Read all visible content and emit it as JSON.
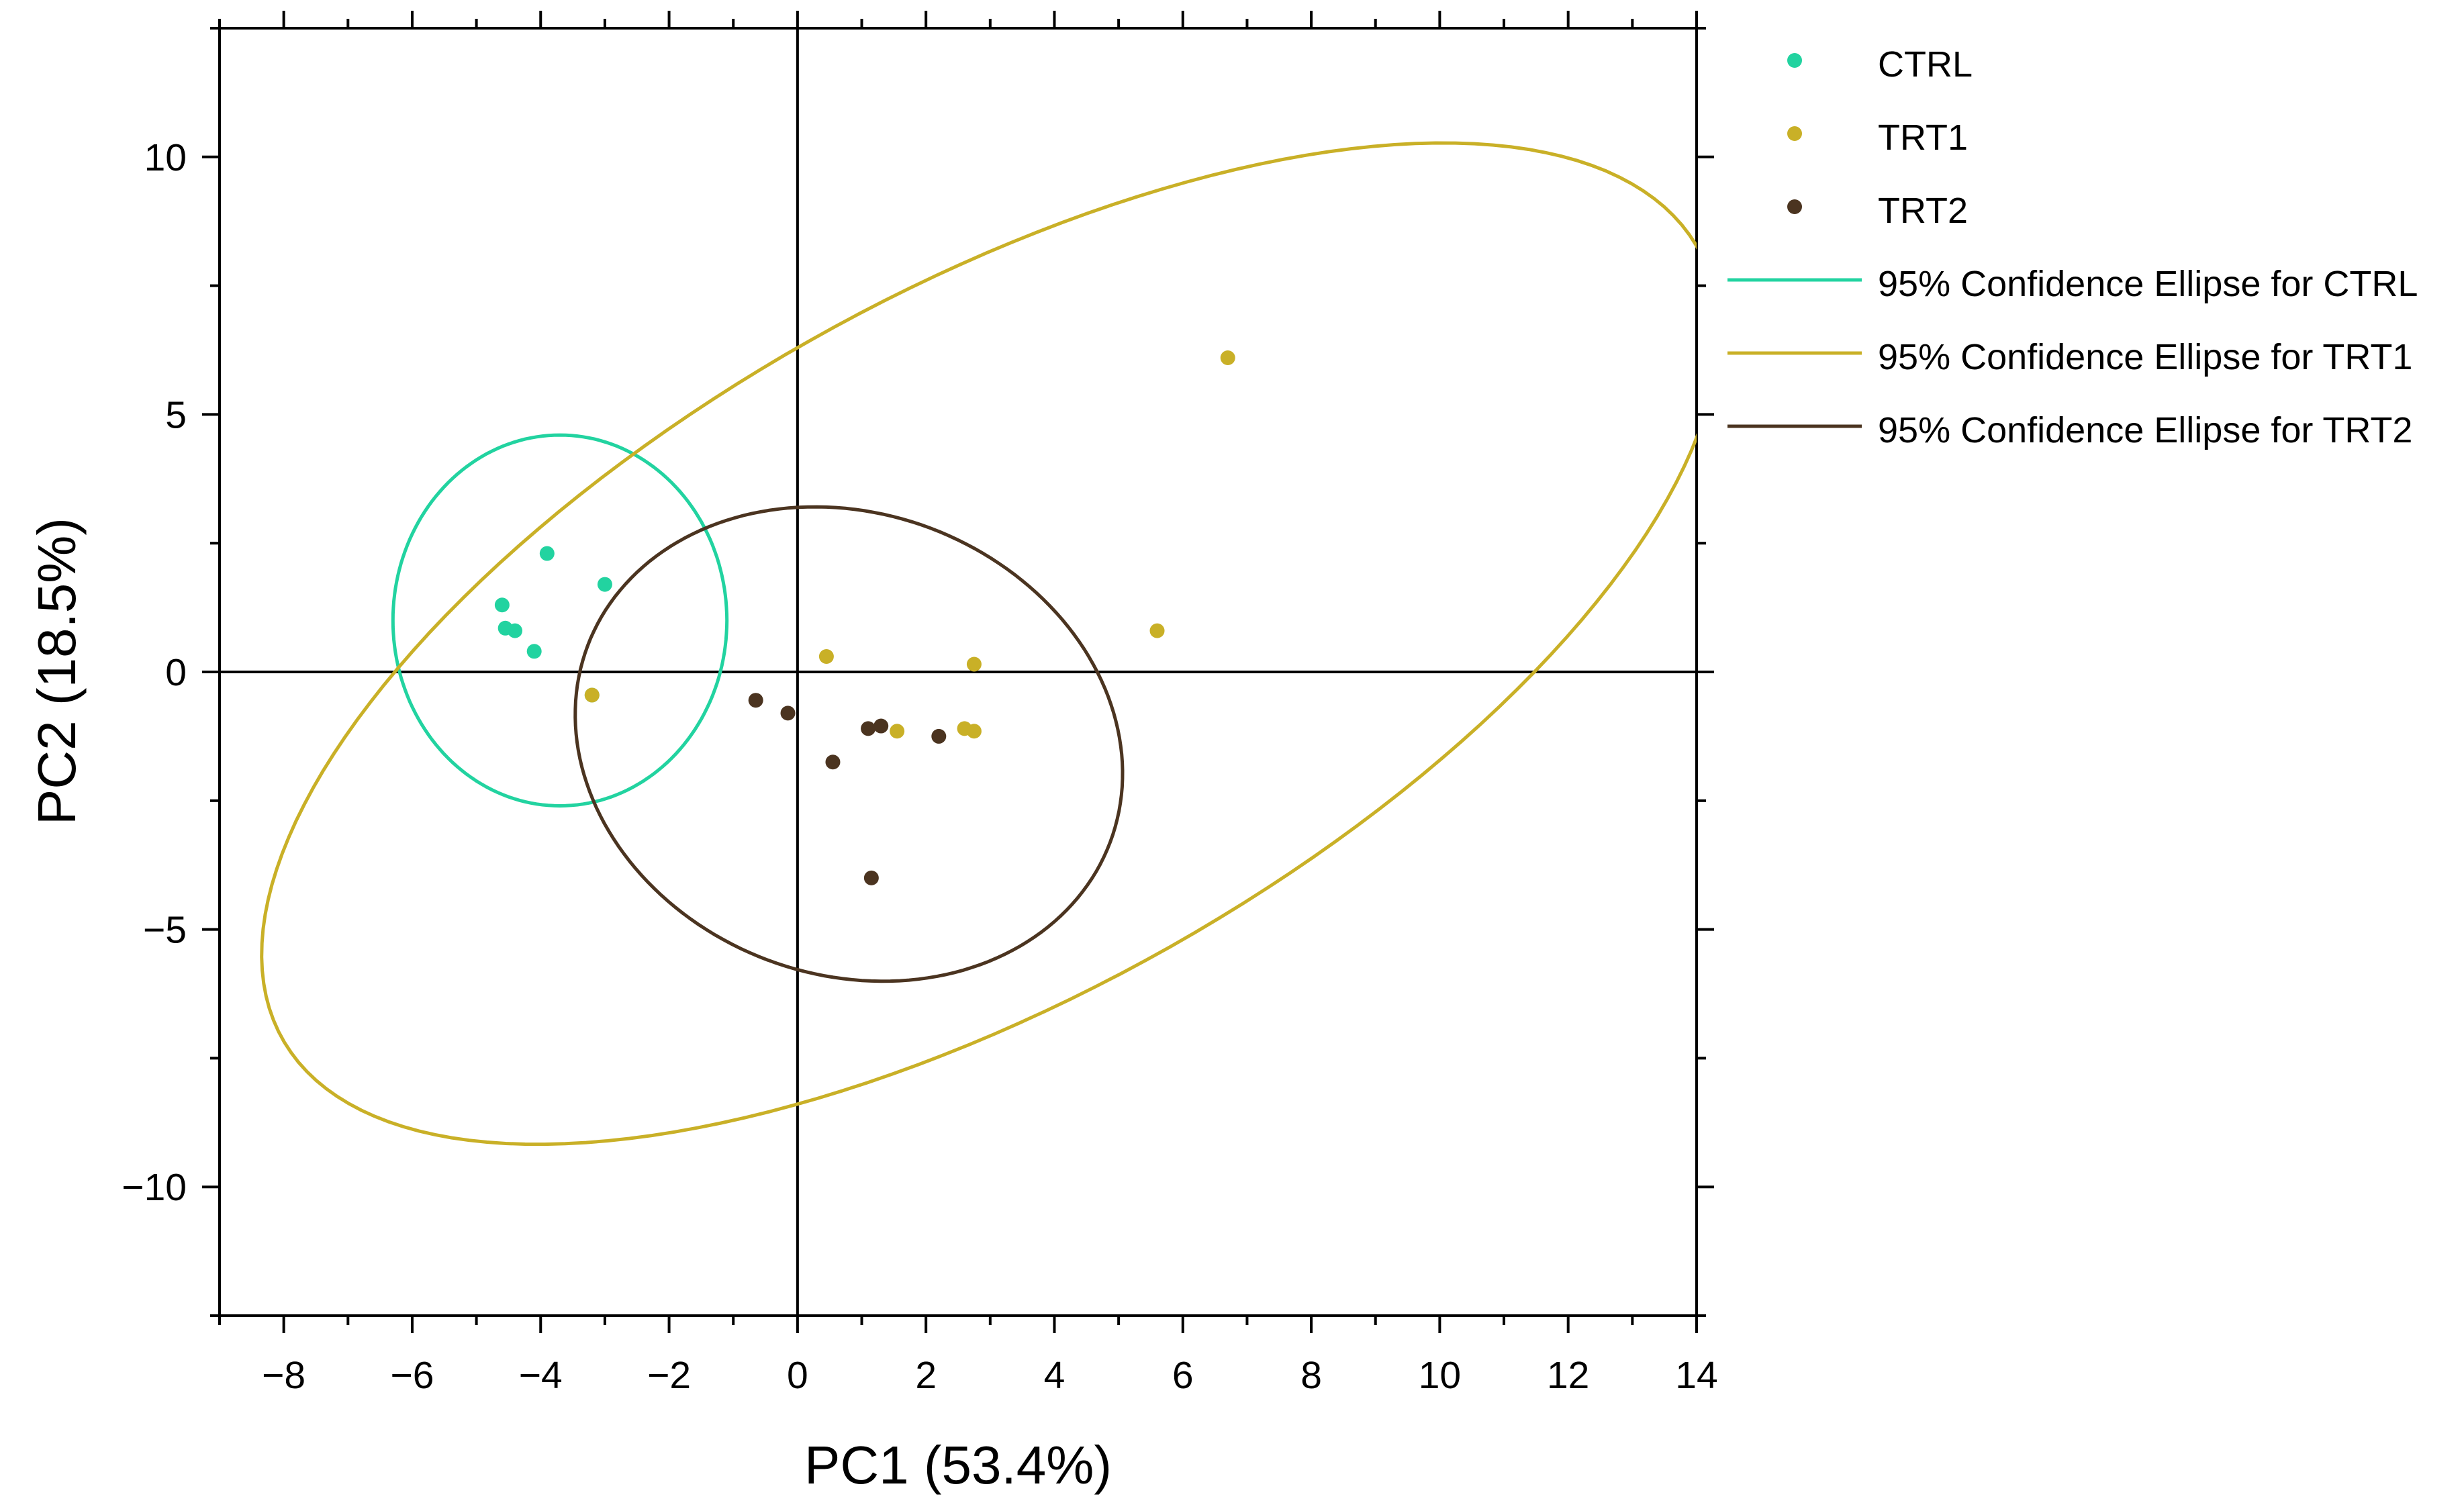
{
  "chart_data": {
    "type": "scatter",
    "title": "",
    "xlabel": "PC1 (53.4%)",
    "ylabel": "PC2 (18.5%)",
    "xlim": [
      -9,
      14
    ],
    "ylim": [
      -12.5,
      12.5
    ],
    "xticks": [
      -8,
      -6,
      -4,
      -2,
      0,
      2,
      4,
      6,
      8,
      10,
      12,
      14
    ],
    "yticks": [
      -10,
      -5,
      0,
      5,
      10
    ],
    "xtick_labels": [
      "−8",
      "−6",
      "−4",
      "−2",
      "0",
      "2",
      "4",
      "6",
      "8",
      "10",
      "12",
      "14"
    ],
    "ytick_labels": [
      "−10",
      "−5",
      "0",
      "5",
      "10"
    ],
    "grid": false,
    "legend_position": "outside-right",
    "series": [
      {
        "name": "CTRL",
        "color": "#22d3a0",
        "points": [
          {
            "x": -4.6,
            "y": 1.3
          },
          {
            "x": -4.55,
            "y": 0.85
          },
          {
            "x": -4.4,
            "y": 0.8
          },
          {
            "x": -4.1,
            "y": 0.4
          },
          {
            "x": -3.9,
            "y": 2.3
          },
          {
            "x": -3.0,
            "y": 1.7
          },
          {
            "x": -3.2,
            "y": -0.45
          }
        ],
        "ellipse": {
          "label": "95% Confidence Ellipse for CTRL",
          "cx": -3.7,
          "cy": 1.0,
          "rx": 2.6,
          "ry": 3.6,
          "angle_deg": 0
        }
      },
      {
        "name": "TRT1",
        "color": "#c9b027",
        "points": [
          {
            "x": 0.45,
            "y": 0.3
          },
          {
            "x": 1.55,
            "y": -1.15
          },
          {
            "x": 2.6,
            "y": -1.1
          },
          {
            "x": 2.75,
            "y": -1.15
          },
          {
            "x": 2.75,
            "y": 0.15
          },
          {
            "x": 5.6,
            "y": 0.8
          },
          {
            "x": 6.7,
            "y": 6.1
          },
          {
            "x": -3.2,
            "y": -0.45
          }
        ],
        "ellipse": {
          "label": "95% Confidence Ellipse for TRT1",
          "cx": 3.0,
          "cy": 0.55,
          "rx": 13.5,
          "ry": 6.4,
          "angle_deg": 38
        }
      },
      {
        "name": "TRT2",
        "color": "#4b3420",
        "points": [
          {
            "x": -0.65,
            "y": -0.55
          },
          {
            "x": -0.15,
            "y": -0.8
          },
          {
            "x": 0.55,
            "y": -1.75
          },
          {
            "x": 1.1,
            "y": -1.1
          },
          {
            "x": 1.3,
            "y": -1.05
          },
          {
            "x": 2.2,
            "y": -1.25
          },
          {
            "x": 1.15,
            "y": -4.0
          }
        ],
        "ellipse": {
          "label": "95% Confidence Ellipse for TRT2",
          "cx": 0.8,
          "cy": -1.4,
          "rx": 4.1,
          "ry": 4.75,
          "angle_deg": 29
        }
      }
    ]
  }
}
